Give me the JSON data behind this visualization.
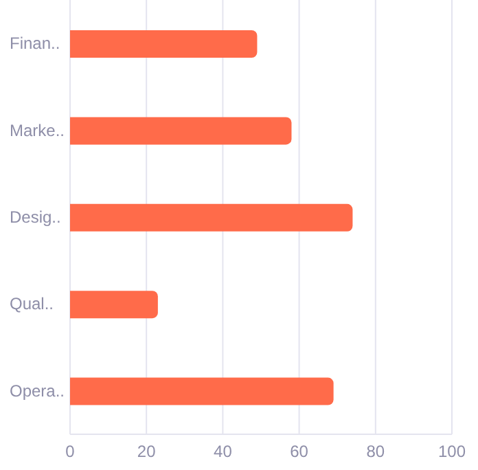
{
  "chart_data": {
    "type": "bar",
    "orientation": "horizontal",
    "categories": [
      "Finan..",
      "Marke..",
      "Desig..",
      "Qual..",
      "Opera.."
    ],
    "values": [
      49,
      58,
      74,
      23,
      69
    ],
    "color": "#ff6b4a",
    "xlim": [
      0,
      100
    ],
    "xticks": [
      0,
      20,
      40,
      60,
      80,
      100
    ],
    "grid": "x"
  }
}
